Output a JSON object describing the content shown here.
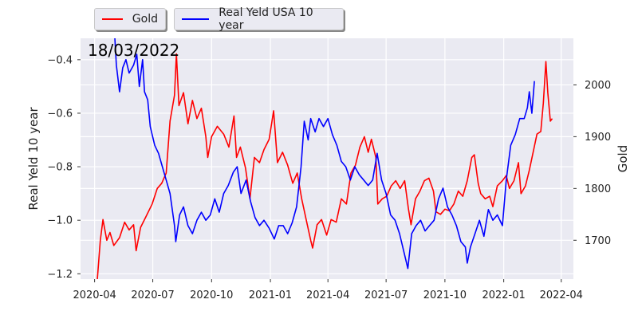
{
  "chart_data": {
    "type": "line",
    "date_label": "18/03/2022",
    "legend_placement": "top-left",
    "grid": true,
    "x_ticks": [
      "2020-04",
      "2020-07",
      "2020-10",
      "2021-01",
      "2021-04",
      "2021-07",
      "2021-10",
      "2022-01",
      "2022-04"
    ],
    "xlim": [
      "2020-03-10",
      "2022-04-20"
    ],
    "y_left": {
      "label": "Real Yeld 10 year",
      "ylim": [
        -1.22,
        -0.32
      ],
      "ticks": [
        -0.4,
        -0.6,
        -0.8,
        -1.0,
        -1.2
      ]
    },
    "y_right": {
      "label": "Gold",
      "ylim": [
        1625,
        2090
      ],
      "ticks": [
        1700,
        1800,
        1900,
        2000
      ]
    },
    "series": [
      {
        "name": "Gold",
        "axis": "right",
        "color": "#ff0000",
        "points": [
          [
            "2020-04-01",
            1575
          ],
          [
            "2020-04-05",
            1620
          ],
          [
            "2020-04-10",
            1700
          ],
          [
            "2020-04-14",
            1740
          ],
          [
            "2020-04-20",
            1700
          ],
          [
            "2020-04-25",
            1715
          ],
          [
            "2020-05-01",
            1690
          ],
          [
            "2020-05-10",
            1705
          ],
          [
            "2020-05-18",
            1735
          ],
          [
            "2020-05-25",
            1720
          ],
          [
            "2020-06-01",
            1730
          ],
          [
            "2020-06-05",
            1680
          ],
          [
            "2020-06-12",
            1725
          ],
          [
            "2020-06-20",
            1745
          ],
          [
            "2020-06-30",
            1770
          ],
          [
            "2020-07-08",
            1800
          ],
          [
            "2020-07-15",
            1810
          ],
          [
            "2020-07-22",
            1830
          ],
          [
            "2020-07-28",
            1930
          ],
          [
            "2020-08-04",
            1980
          ],
          [
            "2020-08-07",
            2060
          ],
          [
            "2020-08-11",
            1960
          ],
          [
            "2020-08-18",
            1985
          ],
          [
            "2020-08-25",
            1925
          ],
          [
            "2020-09-01",
            1970
          ],
          [
            "2020-09-08",
            1935
          ],
          [
            "2020-09-15",
            1955
          ],
          [
            "2020-09-22",
            1900
          ],
          [
            "2020-09-25",
            1860
          ],
          [
            "2020-10-01",
            1900
          ],
          [
            "2020-10-10",
            1920
          ],
          [
            "2020-10-20",
            1905
          ],
          [
            "2020-10-28",
            1880
          ],
          [
            "2020-11-05",
            1940
          ],
          [
            "2020-11-09",
            1860
          ],
          [
            "2020-11-15",
            1880
          ],
          [
            "2020-11-23",
            1840
          ],
          [
            "2020-11-30",
            1780
          ],
          [
            "2020-12-07",
            1860
          ],
          [
            "2020-12-15",
            1850
          ],
          [
            "2020-12-22",
            1875
          ],
          [
            "2020-12-30",
            1895
          ],
          [
            "2021-01-06",
            1950
          ],
          [
            "2021-01-12",
            1850
          ],
          [
            "2021-01-20",
            1870
          ],
          [
            "2021-01-28",
            1845
          ],
          [
            "2021-02-05",
            1810
          ],
          [
            "2021-02-12",
            1830
          ],
          [
            "2021-02-19",
            1780
          ],
          [
            "2021-02-26",
            1740
          ],
          [
            "2021-03-05",
            1700
          ],
          [
            "2021-03-08",
            1685
          ],
          [
            "2021-03-15",
            1730
          ],
          [
            "2021-03-22",
            1740
          ],
          [
            "2021-03-30",
            1710
          ],
          [
            "2021-04-06",
            1740
          ],
          [
            "2021-04-14",
            1735
          ],
          [
            "2021-04-22",
            1780
          ],
          [
            "2021-04-30",
            1770
          ],
          [
            "2021-05-07",
            1830
          ],
          [
            "2021-05-14",
            1845
          ],
          [
            "2021-05-21",
            1880
          ],
          [
            "2021-05-28",
            1900
          ],
          [
            "2021-06-03",
            1870
          ],
          [
            "2021-06-08",
            1895
          ],
          [
            "2021-06-15",
            1860
          ],
          [
            "2021-06-18",
            1770
          ],
          [
            "2021-06-25",
            1780
          ],
          [
            "2021-07-02",
            1785
          ],
          [
            "2021-07-09",
            1805
          ],
          [
            "2021-07-16",
            1815
          ],
          [
            "2021-07-23",
            1800
          ],
          [
            "2021-07-30",
            1815
          ],
          [
            "2021-08-05",
            1760
          ],
          [
            "2021-08-09",
            1730
          ],
          [
            "2021-08-16",
            1780
          ],
          [
            "2021-08-23",
            1795
          ],
          [
            "2021-08-30",
            1815
          ],
          [
            "2021-09-06",
            1820
          ],
          [
            "2021-09-13",
            1795
          ],
          [
            "2021-09-17",
            1755
          ],
          [
            "2021-09-24",
            1750
          ],
          [
            "2021-10-01",
            1760
          ],
          [
            "2021-10-08",
            1757
          ],
          [
            "2021-10-15",
            1770
          ],
          [
            "2021-10-22",
            1795
          ],
          [
            "2021-10-29",
            1785
          ],
          [
            "2021-11-05",
            1815
          ],
          [
            "2021-11-12",
            1860
          ],
          [
            "2021-11-16",
            1865
          ],
          [
            "2021-11-22",
            1810
          ],
          [
            "2021-11-26",
            1790
          ],
          [
            "2021-12-03",
            1780
          ],
          [
            "2021-12-10",
            1785
          ],
          [
            "2021-12-15",
            1765
          ],
          [
            "2021-12-22",
            1805
          ],
          [
            "2021-12-30",
            1815
          ],
          [
            "2022-01-05",
            1825
          ],
          [
            "2022-01-10",
            1800
          ],
          [
            "2022-01-17",
            1815
          ],
          [
            "2022-01-24",
            1850
          ],
          [
            "2022-01-28",
            1790
          ],
          [
            "2022-02-04",
            1805
          ],
          [
            "2022-02-10",
            1835
          ],
          [
            "2022-02-16",
            1870
          ],
          [
            "2022-02-22",
            1905
          ],
          [
            "2022-02-28",
            1910
          ],
          [
            "2022-03-04",
            1965
          ],
          [
            "2022-03-08",
            2045
          ],
          [
            "2022-03-11",
            1985
          ],
          [
            "2022-03-15",
            1930
          ],
          [
            "2022-03-18",
            1935
          ]
        ]
      },
      {
        "name": "Real Yeld USA 10 year",
        "axis": "left",
        "color": "#0000ff",
        "points": [
          [
            "2020-05-01",
            -0.25
          ],
          [
            "2020-05-05",
            -0.42
          ],
          [
            "2020-05-10",
            -0.52
          ],
          [
            "2020-05-15",
            -0.43
          ],
          [
            "2020-05-20",
            -0.4
          ],
          [
            "2020-05-25",
            -0.45
          ],
          [
            "2020-06-01",
            -0.42
          ],
          [
            "2020-06-06",
            -0.38
          ],
          [
            "2020-06-10",
            -0.5
          ],
          [
            "2020-06-15",
            -0.4
          ],
          [
            "2020-06-18",
            -0.52
          ],
          [
            "2020-06-23",
            -0.55
          ],
          [
            "2020-06-27",
            -0.65
          ],
          [
            "2020-07-04",
            -0.72
          ],
          [
            "2020-07-10",
            -0.75
          ],
          [
            "2020-07-16",
            -0.8
          ],
          [
            "2020-07-22",
            -0.85
          ],
          [
            "2020-07-28",
            -0.9
          ],
          [
            "2020-08-04",
            -1.02
          ],
          [
            "2020-08-06",
            -1.08
          ],
          [
            "2020-08-12",
            -0.98
          ],
          [
            "2020-08-18",
            -0.95
          ],
          [
            "2020-08-25",
            -1.02
          ],
          [
            "2020-09-01",
            -1.05
          ],
          [
            "2020-09-08",
            -1.0
          ],
          [
            "2020-09-15",
            -0.97
          ],
          [
            "2020-09-22",
            -1.0
          ],
          [
            "2020-09-29",
            -0.98
          ],
          [
            "2020-10-06",
            -0.92
          ],
          [
            "2020-10-13",
            -0.97
          ],
          [
            "2020-10-20",
            -0.9
          ],
          [
            "2020-10-27",
            -0.87
          ],
          [
            "2020-11-04",
            -0.82
          ],
          [
            "2020-11-10",
            -0.8
          ],
          [
            "2020-11-16",
            -0.9
          ],
          [
            "2020-11-24",
            -0.85
          ],
          [
            "2020-12-01",
            -0.93
          ],
          [
            "2020-12-08",
            -0.99
          ],
          [
            "2020-12-15",
            -1.02
          ],
          [
            "2020-12-22",
            -1.0
          ],
          [
            "2020-12-30",
            -1.03
          ],
          [
            "2021-01-07",
            -1.07
          ],
          [
            "2021-01-14",
            -1.02
          ],
          [
            "2021-01-21",
            -1.02
          ],
          [
            "2021-01-28",
            -1.05
          ],
          [
            "2021-02-04",
            -1.01
          ],
          [
            "2021-02-11",
            -0.95
          ],
          [
            "2021-02-18",
            -0.8
          ],
          [
            "2021-02-23",
            -0.63
          ],
          [
            "2021-03-01",
            -0.7
          ],
          [
            "2021-03-05",
            -0.62
          ],
          [
            "2021-03-12",
            -0.67
          ],
          [
            "2021-03-18",
            -0.62
          ],
          [
            "2021-03-25",
            -0.65
          ],
          [
            "2021-04-01",
            -0.62
          ],
          [
            "2021-04-08",
            -0.68
          ],
          [
            "2021-04-15",
            -0.72
          ],
          [
            "2021-04-22",
            -0.78
          ],
          [
            "2021-04-29",
            -0.8
          ],
          [
            "2021-05-06",
            -0.85
          ],
          [
            "2021-05-13",
            -0.8
          ],
          [
            "2021-05-20",
            -0.83
          ],
          [
            "2021-05-27",
            -0.85
          ],
          [
            "2021-06-03",
            -0.87
          ],
          [
            "2021-06-10",
            -0.85
          ],
          [
            "2021-06-17",
            -0.75
          ],
          [
            "2021-06-24",
            -0.85
          ],
          [
            "2021-07-01",
            -0.9
          ],
          [
            "2021-07-08",
            -0.98
          ],
          [
            "2021-07-15",
            -1.0
          ],
          [
            "2021-07-22",
            -1.05
          ],
          [
            "2021-07-29",
            -1.12
          ],
          [
            "2021-08-04",
            -1.18
          ],
          [
            "2021-08-10",
            -1.05
          ],
          [
            "2021-08-17",
            -1.02
          ],
          [
            "2021-08-24",
            -1.0
          ],
          [
            "2021-08-31",
            -1.04
          ],
          [
            "2021-09-07",
            -1.02
          ],
          [
            "2021-09-14",
            -1.0
          ],
          [
            "2021-09-21",
            -0.92
          ],
          [
            "2021-09-28",
            -0.88
          ],
          [
            "2021-10-05",
            -0.95
          ],
          [
            "2021-10-12",
            -0.98
          ],
          [
            "2021-10-19",
            -1.02
          ],
          [
            "2021-10-26",
            -1.08
          ],
          [
            "2021-11-02",
            -1.1
          ],
          [
            "2021-11-05",
            -1.16
          ],
          [
            "2021-11-10",
            -1.1
          ],
          [
            "2021-11-17",
            -1.05
          ],
          [
            "2021-11-24",
            -1.0
          ],
          [
            "2021-12-01",
            -1.06
          ],
          [
            "2021-12-08",
            -0.96
          ],
          [
            "2021-12-15",
            -1.0
          ],
          [
            "2021-12-22",
            -0.98
          ],
          [
            "2021-12-30",
            -1.02
          ],
          [
            "2022-01-05",
            -0.85
          ],
          [
            "2022-01-12",
            -0.72
          ],
          [
            "2022-01-19",
            -0.68
          ],
          [
            "2022-01-26",
            -0.62
          ],
          [
            "2022-02-02",
            -0.62
          ],
          [
            "2022-02-07",
            -0.58
          ],
          [
            "2022-02-10",
            -0.52
          ],
          [
            "2022-02-14",
            -0.6
          ],
          [
            "2022-02-18",
            -0.48
          ]
        ]
      }
    ]
  }
}
